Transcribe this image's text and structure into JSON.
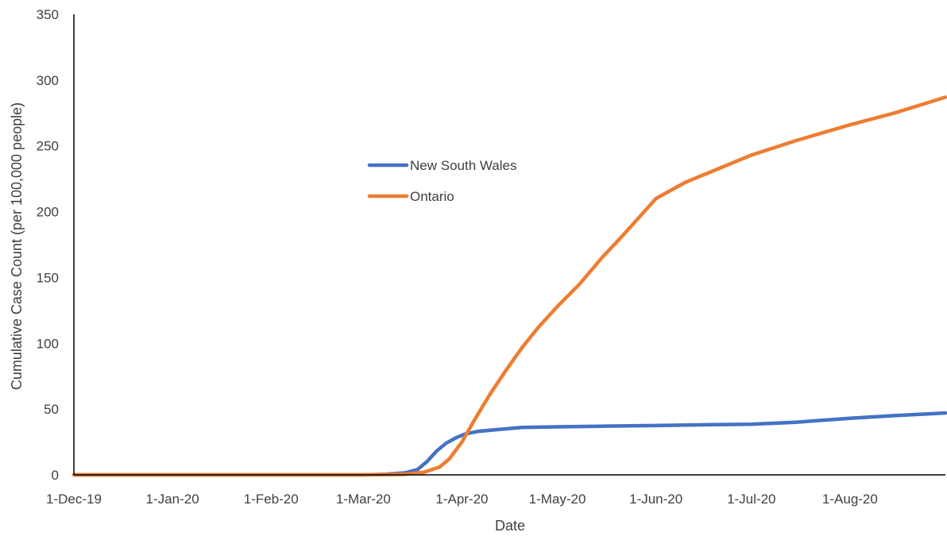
{
  "chart_data": {
    "type": "line",
    "title": "",
    "xlabel": "Date",
    "ylabel": "Cumulative Case Count (per 100,000 people)",
    "x_ticks": [
      "1-Dec-19",
      "1-Jan-20",
      "1-Feb-20",
      "1-Mar-20",
      "1-Apr-20",
      "1-May-20",
      "1-Jun-20",
      "1-Jul-20",
      "1-Aug-20"
    ],
    "xlim": [
      "2019-12-01",
      "2020-08-31"
    ],
    "ylim": [
      0,
      350
    ],
    "y_ticks": [
      0,
      50,
      100,
      150,
      200,
      250,
      300,
      350
    ],
    "grid": false,
    "legend_position": "center",
    "series": [
      {
        "name": "New South Wales",
        "color": "#4472C4",
        "x": [
          "2019-12-01",
          "2020-03-01",
          "2020-03-08",
          "2020-03-14",
          "2020-03-18",
          "2020-03-21",
          "2020-03-24",
          "2020-03-27",
          "2020-03-30",
          "2020-04-02",
          "2020-04-06",
          "2020-04-10",
          "2020-04-15",
          "2020-04-20",
          "2020-05-01",
          "2020-05-15",
          "2020-06-01",
          "2020-06-15",
          "2020-07-01",
          "2020-07-15",
          "2020-08-01",
          "2020-08-15",
          "2020-08-31"
        ],
        "y": [
          0,
          0,
          0.5,
          1.5,
          4,
          10,
          18,
          24,
          28,
          31,
          33,
          34,
          35,
          36,
          36.5,
          37,
          37.5,
          38,
          38.5,
          40,
          43,
          45,
          47
        ]
      },
      {
        "name": "Ontario",
        "color": "#ED7D31",
        "x": [
          "2019-12-01",
          "2020-03-01",
          "2020-03-14",
          "2020-03-20",
          "2020-03-25",
          "2020-03-28",
          "2020-04-01",
          "2020-04-05",
          "2020-04-10",
          "2020-04-15",
          "2020-04-20",
          "2020-04-25",
          "2020-05-01",
          "2020-05-08",
          "2020-05-15",
          "2020-05-22",
          "2020-06-01",
          "2020-06-10",
          "2020-06-20",
          "2020-07-01",
          "2020-07-15",
          "2020-08-01",
          "2020-08-15",
          "2020-08-31"
        ],
        "y": [
          0,
          0,
          0.5,
          2,
          6,
          12,
          25,
          42,
          62,
          80,
          97,
          112,
          128,
          145,
          165,
          183,
          210,
          222,
          232,
          243,
          254,
          266,
          275,
          287
        ]
      }
    ]
  }
}
